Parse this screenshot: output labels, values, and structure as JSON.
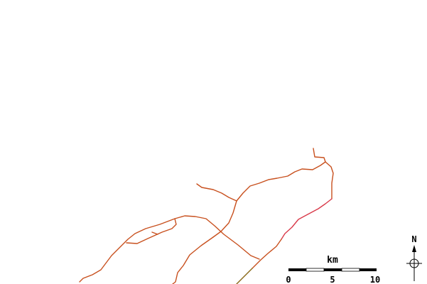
{
  "scale_bar": {
    "unit": "km",
    "ticks": [
      "0",
      "5",
      "10"
    ]
  },
  "north_arrow": {
    "label": "N"
  },
  "colors": {
    "road": "#c8501e",
    "road_segment_pink": "#d93a4a",
    "road_segment_olive": "#8a6a1a",
    "scale_dark": "#000000",
    "scale_light": "#ffffff"
  }
}
